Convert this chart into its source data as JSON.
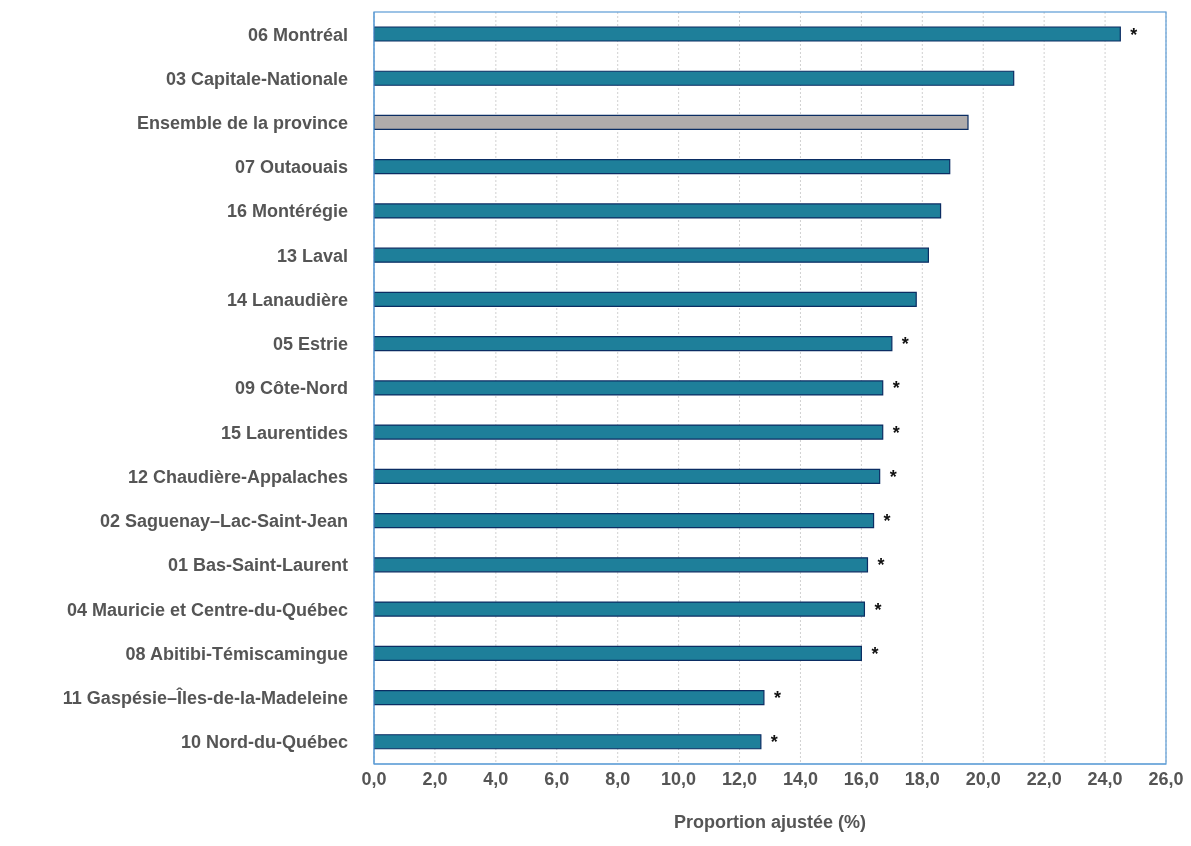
{
  "chart_data": {
    "type": "bar",
    "orientation": "horizontal",
    "xlabel": "Proportion ajustée (%)",
    "categories": [
      "06 Montréal",
      "03 Capitale-Nationale",
      "Ensemble de la province",
      "07 Outaouais",
      "16 Montérégie",
      "13 Laval",
      "14 Lanaudière",
      "05 Estrie",
      "09 Côte-Nord",
      "15 Laurentides",
      "12 Chaudière-Appalaches",
      "02 Saguenay–Lac-Saint-Jean",
      "01 Bas-Saint-Laurent",
      "04 Mauricie et Centre-du-Québec",
      "08 Abitibi-Témiscamingue",
      "11 Gaspésie–Îles-de-la-Madeleine",
      "10 Nord-du-Québec"
    ],
    "values": [
      24.5,
      21.0,
      19.5,
      18.9,
      18.6,
      18.2,
      17.8,
      17.0,
      16.7,
      16.7,
      16.6,
      16.4,
      16.2,
      16.1,
      16.0,
      12.8,
      12.7
    ],
    "colors": [
      "#1e7f9a",
      "#1e7f9a",
      "#b0acab",
      "#1e7f9a",
      "#1e7f9a",
      "#1e7f9a",
      "#1e7f9a",
      "#1e7f9a",
      "#1e7f9a",
      "#1e7f9a",
      "#1e7f9a",
      "#1e7f9a",
      "#1e7f9a",
      "#1e7f9a",
      "#1e7f9a",
      "#1e7f9a",
      "#1e7f9a"
    ],
    "xlim": [
      0,
      26
    ],
    "xticks": [
      {
        "value": 0,
        "label": "0,0"
      },
      {
        "value": 2,
        "label": "2,0"
      },
      {
        "value": 4,
        "label": "4,0"
      },
      {
        "value": 6,
        "label": "6,0"
      },
      {
        "value": 8,
        "label": "8,0"
      },
      {
        "value": 10,
        "label": "10,0"
      },
      {
        "value": 12,
        "label": "12,0"
      },
      {
        "value": 14,
        "label": "14,0"
      },
      {
        "value": 16,
        "label": "16,0"
      },
      {
        "value": 18,
        "label": "18,0"
      },
      {
        "value": 20,
        "label": "20,0"
      },
      {
        "value": 22,
        "label": "22,0"
      },
      {
        "value": 24,
        "label": "24,0"
      },
      {
        "value": 26,
        "label": "26,0"
      }
    ],
    "grid": "x",
    "legend": false,
    "annotations": [
      {
        "text": "*",
        "x": 24.5,
        "y": "06 Montréal"
      },
      {
        "text": "*",
        "x": 17.0,
        "y": "05 Estrie"
      },
      {
        "text": "*",
        "x": 16.7,
        "y": "09 Côte-Nord"
      },
      {
        "text": "*",
        "x": 16.7,
        "y": "15 Laurentides"
      },
      {
        "text": "*",
        "x": 16.6,
        "y": "12 Chaudière-Appalaches"
      },
      {
        "text": "*",
        "x": 16.4,
        "y": "02 Saguenay–Lac-Saint-Jean"
      },
      {
        "text": "*",
        "x": 16.2,
        "y": "01 Bas-Saint-Laurent"
      },
      {
        "text": "*",
        "x": 16.1,
        "y": "04 Mauricie et Centre-du-Québec"
      },
      {
        "text": "*",
        "x": 16.0,
        "y": "08 Abitibi-Témiscamingue"
      },
      {
        "text": "*",
        "x": 12.8,
        "y": "11 Gaspésie–Îles-de-la-Madeleine"
      },
      {
        "text": "*",
        "x": 12.7,
        "y": "10 Nord-du-Québec"
      }
    ]
  }
}
